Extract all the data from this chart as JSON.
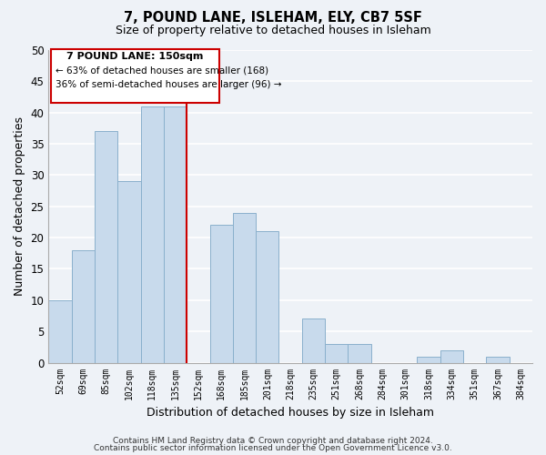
{
  "title": "7, POUND LANE, ISLEHAM, ELY, CB7 5SF",
  "subtitle": "Size of property relative to detached houses in Isleham",
  "xlabel": "Distribution of detached houses by size in Isleham",
  "ylabel": "Number of detached properties",
  "bar_color": "#c8daec",
  "bar_edge_color": "#8ab0cc",
  "categories": [
    "52sqm",
    "69sqm",
    "85sqm",
    "102sqm",
    "118sqm",
    "135sqm",
    "152sqm",
    "168sqm",
    "185sqm",
    "201sqm",
    "218sqm",
    "235sqm",
    "251sqm",
    "268sqm",
    "284sqm",
    "301sqm",
    "318sqm",
    "334sqm",
    "351sqm",
    "367sqm",
    "384sqm"
  ],
  "values": [
    10,
    18,
    37,
    29,
    41,
    41,
    0,
    22,
    24,
    21,
    0,
    7,
    3,
    3,
    0,
    0,
    1,
    2,
    0,
    1,
    0
  ],
  "ylim": [
    0,
    50
  ],
  "yticks": [
    0,
    5,
    10,
    15,
    20,
    25,
    30,
    35,
    40,
    45,
    50
  ],
  "annotation_title": "7 POUND LANE: 150sqm",
  "annotation_line1": "← 63% of detached houses are smaller (168)",
  "annotation_line2": "36% of semi-detached houses are larger (96) →",
  "annotation_box_color": "#ffffff",
  "annotation_box_edge": "#cc0000",
  "vline_color": "#cc0000",
  "footer1": "Contains HM Land Registry data © Crown copyright and database right 2024.",
  "footer2": "Contains public sector information licensed under the Open Government Licence v3.0.",
  "bg_color": "#eef2f7",
  "plot_bg_color": "#eef2f7",
  "grid_color": "#ffffff"
}
